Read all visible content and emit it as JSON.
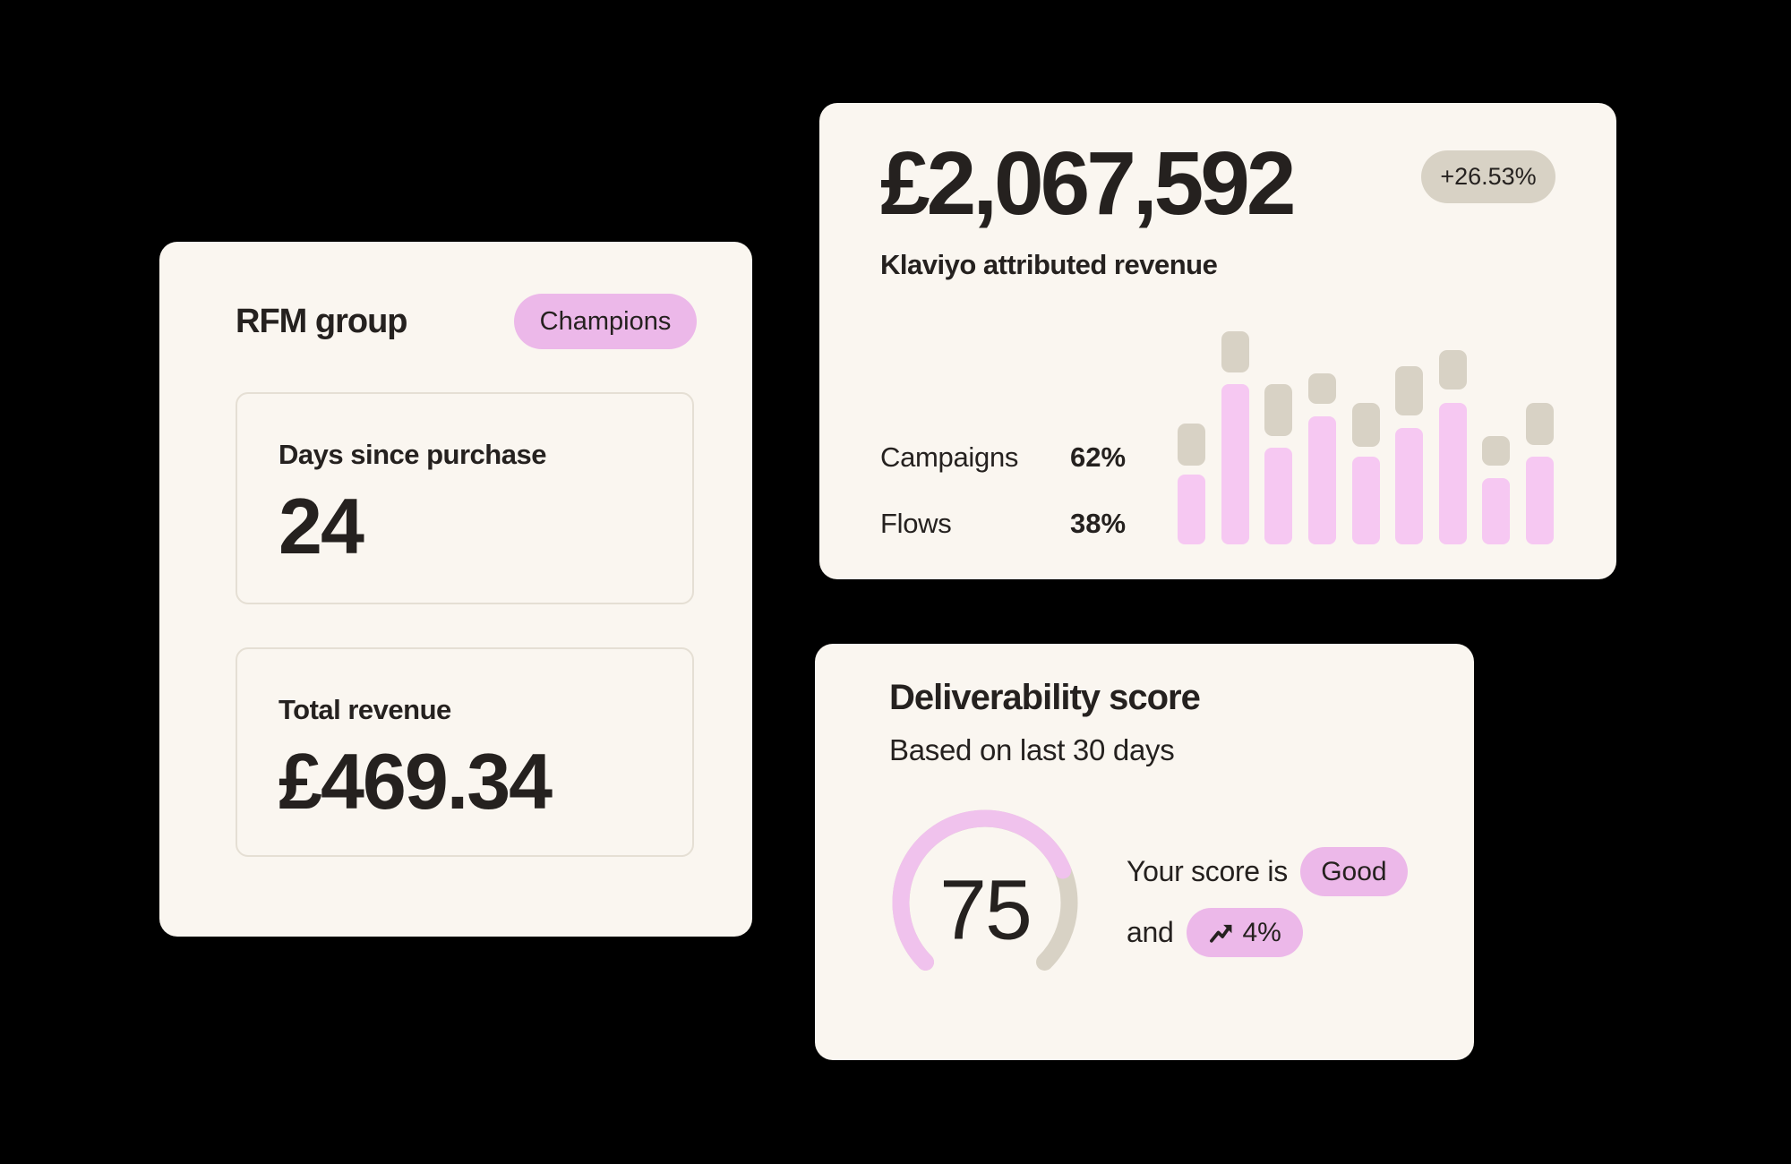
{
  "colors": {
    "page_bg": "#000000",
    "card_bg": "#FAF6F0",
    "text": "#25211F",
    "box_border": "#E5DFD4",
    "pill_pink": "#ECB8E9",
    "bar_pink": "#F6C8F2",
    "gauge_pink": "#F0C2ED",
    "neutral_gray": "#D8D2C5"
  },
  "rfm_card": {
    "title": "RFM group",
    "badge": "Champions",
    "metrics": [
      {
        "label": "Days since purchase",
        "value": "24"
      },
      {
        "label": "Total revenue",
        "value": "£469.34"
      }
    ]
  },
  "revenue_card": {
    "headline": "£2,067,592",
    "badge": "+26.53%",
    "subtitle": "Klaviyo attributed revenue",
    "stats": [
      {
        "label": "Campaigns",
        "value": "62%"
      },
      {
        "label": "Flows",
        "value": "38%"
      }
    ],
    "chart_data": {
      "type": "bar",
      "subtype": "two-segment columns (pink lower bar, detached gray cap above)",
      "title": "Klaviyo attributed revenue",
      "categories": [
        "1",
        "2",
        "3",
        "4",
        "5",
        "6",
        "7",
        "8",
        "9"
      ],
      "axes_visible": false,
      "gridlines": false,
      "legend": "none (Campaigns 62% / Flows 38% shown as text stats)",
      "ylim_pct": [
        0,
        100
      ],
      "series": [
        {
          "name": "pink-segment",
          "color": "#F6C8F2",
          "heights_pct": [
            32.8,
            75.2,
            45.4,
            60.1,
            41.2,
            54.6,
            66.4,
            31.1,
            41.2
          ]
        },
        {
          "name": "gray-cap",
          "color": "#D8D2C5",
          "bottom_pct": [
            37.0,
            80.7,
            50.8,
            66.0,
            45.8,
            60.5,
            72.7,
            37.0,
            46.6
          ],
          "top_pct": [
            56.7,
            100,
            75.2,
            80.3,
            66.4,
            83.6,
            91.2,
            50.8,
            66.4
          ]
        }
      ]
    }
  },
  "deliverability_card": {
    "title": "Deliverability score",
    "subtitle": "Based on last 30 days",
    "score": "75",
    "gauge": {
      "percent": 75,
      "span_deg": 270,
      "start_deg": -135,
      "track_color": "#D8D2C5",
      "fill_color": "#F0C2ED"
    },
    "line1_prefix": "Your score is",
    "score_badge": "Good",
    "line2_prefix": "and",
    "trend_badge": "4%",
    "trend_icon": "trend-up-icon"
  }
}
